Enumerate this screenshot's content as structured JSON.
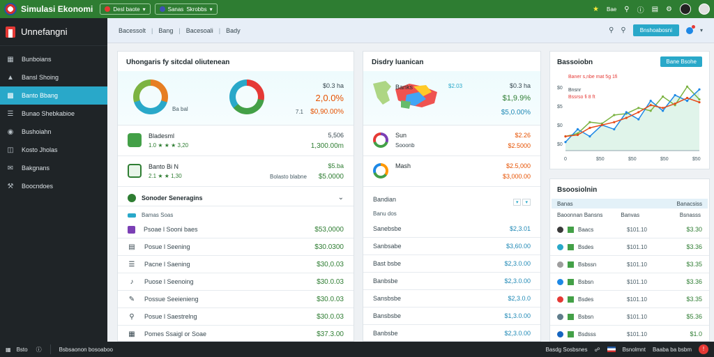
{
  "topbar": {
    "title": "Simulasi Ekonomi",
    "pill1": "Desl baote",
    "pill2_a": "Sanas",
    "pill2_b": "Skrobbs",
    "user_label": "Bae"
  },
  "sidebar": {
    "brand": "Unnefangni",
    "items": [
      {
        "label": "Bunboians",
        "icon": "dashboard-icon"
      },
      {
        "label": "Bansl Shoing",
        "icon": "chart-icon"
      },
      {
        "label": "Banto Bbang",
        "icon": "wallet-icon"
      },
      {
        "label": "Bunao Shebkabioe",
        "icon": "list-icon"
      },
      {
        "label": "Bushoiahn",
        "icon": "globe-icon"
      },
      {
        "label": "Kosto Jholas",
        "icon": "grid-icon"
      },
      {
        "label": "Bakgnans",
        "icon": "chat-icon"
      },
      {
        "label": "Boocndoes",
        "icon": "wrench-icon"
      }
    ]
  },
  "subheader": {
    "crumb1": "Bacessolt",
    "crumb2": "Bang",
    "crumb3": "Bacesoali",
    "crumb4": "Bady",
    "button": "Bnshoabosni"
  },
  "card1": {
    "title": "Uhongaris fy sitcdal oliutenean",
    "top_label": "Ba bal",
    "top_val1": "$0.3 ha",
    "top_val2": "2,0.0%",
    "top_val3_prefix": "7.1",
    "top_val3": "$0,90.00%",
    "rows": [
      {
        "name": "Bladesml",
        "sub": "1.0 ★ ★ ★ 3,20",
        "a": "5,506",
        "b": "1,300.00m"
      },
      {
        "name": "Banto Bi N",
        "sub": "2.1 ★ ★ 1,30",
        "a": "$5.ba",
        "b": "$5.0000"
      }
    ],
    "row2_mid": "Bolasto blabne",
    "accordion_title": "Sonoder Seneragins",
    "accordion_sub": "Bamas Soas",
    "list": [
      {
        "name": "Psoae l Sooni baes",
        "val": "$53,0000"
      },
      {
        "name": "Posue l Seening",
        "val": "$30.0300"
      },
      {
        "name": "Pacne l Saening",
        "val": "$30,0.03"
      },
      {
        "name": "Puose l Seenoing",
        "val": "$30.0.03"
      },
      {
        "name": "Possue Seeienieng",
        "val": "$30.0.03"
      },
      {
        "name": "Posue l Saestrelng",
        "val": "$30.0.03"
      },
      {
        "name": "Pomes Ssaigl or Soae",
        "val": "$37.3.00"
      }
    ]
  },
  "card2": {
    "title": "Disdry luanican",
    "map_label": "Banks",
    "top_val0": "$2.03",
    "top_val1": "$0.3 ha",
    "top_val2": "$1,9.9%",
    "top_val3": "$5,0.00%",
    "rows": [
      {
        "name": "Sun",
        "sub": "Sooonb",
        "a": "$2.26",
        "b": "$2.5000"
      },
      {
        "name": "Mash",
        "sub": "",
        "a": "$2.5,000",
        "b": "$3,000.00"
      }
    ],
    "list_header": "Bandian",
    "list_sub": "Banu dos",
    "list": [
      {
        "name": "Sanebsbe",
        "val": "$2,3.01"
      },
      {
        "name": "Sanbsabe",
        "val": "$3,60.00"
      },
      {
        "name": "Bast bsbe",
        "val": "$2,3.0.00"
      },
      {
        "name": "Banbsbe",
        "val": "$2,3.0.00"
      },
      {
        "name": "Sansbsbe",
        "val": "$2,3.0.0"
      },
      {
        "name": "Bansbsbe",
        "val": "$1,3.0.00"
      },
      {
        "name": "Banbsbe",
        "val": "$2,3.0.00"
      }
    ]
  },
  "card3": {
    "title": "Bassoiobn",
    "button": "Bane Bsohe",
    "legend1": "Bnsnr",
    "legend2": "Bssrso fi 8 ft",
    "legend_top": "Baner s,nbe mat 5g 1fi",
    "y_labels": [
      "$0",
      "$5",
      "$0",
      "$0"
    ],
    "x_labels": [
      "0",
      "$50",
      "$50",
      "$50",
      "$50"
    ]
  },
  "card4": {
    "title": "Bsoosiolnin",
    "tab1": "Banas",
    "tab2": "Banacsiss",
    "head1": "Baoonnan Bansns",
    "head2": "Banvas",
    "head3": "Bsnasss",
    "rows": [
      {
        "name": "Baacs",
        "mid": "$101.10",
        "val": "$3.30",
        "color": "#3a3a3a"
      },
      {
        "name": "Bsdes",
        "mid": "$101.10",
        "val": "$3.36",
        "color": "#29a8c9"
      },
      {
        "name": "Bsbssn",
        "mid": "$101.10",
        "val": "$3.35",
        "color": "#9e9e9e"
      },
      {
        "name": "Bsbsn",
        "mid": "$101.10",
        "val": "$3.36",
        "color": "#1e88e5"
      },
      {
        "name": "Bsdes",
        "mid": "$101.10",
        "val": "$3.35",
        "color": "#e53935"
      },
      {
        "name": "Bsbsn",
        "mid": "$101.10",
        "val": "$5.36",
        "color": "#607d8b"
      },
      {
        "name": "Bsdsss",
        "mid": "$101.10",
        "val": "$1.0",
        "color": "#1565c0"
      }
    ]
  },
  "footer": {
    "left1": "Bsto",
    "left2": "Bsbsaonon bosoaboo",
    "right1": "Basdg Sosbsnes",
    "right2": "Bsnolmnt",
    "right3": "Baaba ba bsbm"
  },
  "chart_data": {
    "type": "line",
    "x": [
      0,
      1,
      2,
      3,
      4,
      5,
      6,
      7,
      8,
      9,
      10,
      11
    ],
    "series": [
      {
        "values": [
          1.0,
          1.2,
          2.0,
          1.9,
          2.5,
          2.6,
          3.0,
          2.8,
          3.8,
          3.2,
          4.5,
          3.6
        ]
      },
      {
        "values": [
          0.6,
          1.5,
          1.0,
          1.8,
          1.5,
          2.7,
          2.2,
          3.5,
          2.8,
          3.9,
          3.5,
          4.3
        ]
      },
      {
        "values": [
          1.0,
          1.1,
          1.6,
          1.8,
          2.0,
          2.3,
          2.7,
          3.2,
          3.0,
          3.3,
          3.7,
          3.4
        ]
      }
    ],
    "series_colors": [
      "#7cb342",
      "#1e88e5",
      "#e64a19"
    ],
    "ylim": [
      0,
      5
    ],
    "grid": false
  }
}
